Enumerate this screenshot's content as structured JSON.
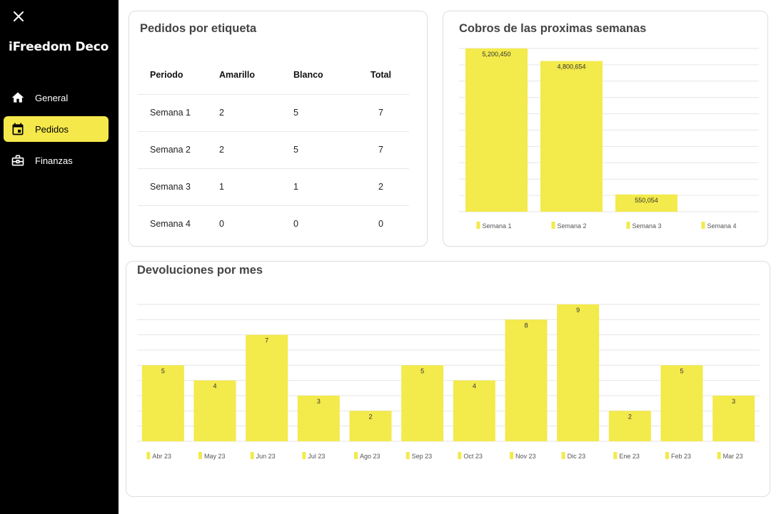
{
  "sidebar": {
    "app_title": "iFreedom Deco",
    "close_icon": "close-icon",
    "items": [
      {
        "label": "General",
        "icon": "home-icon",
        "active": false
      },
      {
        "label": "Pedidos",
        "icon": "calendar-icon",
        "active": true
      },
      {
        "label": "Finanzas",
        "icon": "briefcase-icon",
        "active": false
      }
    ]
  },
  "colors": {
    "accent": "#f5e84a",
    "bar": "#f3ea4b",
    "sidebar_bg": "#000000"
  },
  "orders_table": {
    "title": "Pedidos por etiqueta",
    "headers": [
      "Periodo",
      "Amarillo",
      "Blanco",
      "Total"
    ],
    "rows": [
      [
        "Semana 1",
        "2",
        "5",
        "7"
      ],
      [
        "Semana 2",
        "2",
        "5",
        "7"
      ],
      [
        "Semana 3",
        "1",
        "1",
        "2"
      ],
      [
        "Semana 4",
        "0",
        "0",
        "0"
      ]
    ]
  },
  "charts": {
    "collections_title": "Cobros de las proximas semanas",
    "returns_title": "Devoluciones por mes"
  },
  "chart_data": [
    {
      "type": "bar",
      "title": "Cobros de las proximas semanas",
      "categories": [
        "Semana 1",
        "Semana 2",
        "Semana 3",
        "Semana 4"
      ],
      "values": [
        5200450,
        4800654,
        550054,
        0
      ],
      "value_labels": [
        "5,200,450",
        "4,800,654",
        "550,054",
        ""
      ],
      "ylim": [
        0,
        5200450
      ],
      "grid": true,
      "legend_position": "bottom"
    },
    {
      "type": "bar",
      "title": "Devoluciones por mes",
      "categories": [
        "Abr 23",
        "May 23",
        "Jun 23",
        "Jul 23",
        "Ago 23",
        "Sep 23",
        "Oct 23",
        "Nov 23",
        "Dic 23",
        "Ene 23",
        "Feb 23",
        "Mar 23"
      ],
      "values": [
        5,
        4,
        7,
        3,
        2,
        5,
        4,
        8,
        9,
        2,
        5,
        3
      ],
      "ylim": [
        0,
        9
      ],
      "grid": true,
      "legend_position": "bottom"
    }
  ]
}
